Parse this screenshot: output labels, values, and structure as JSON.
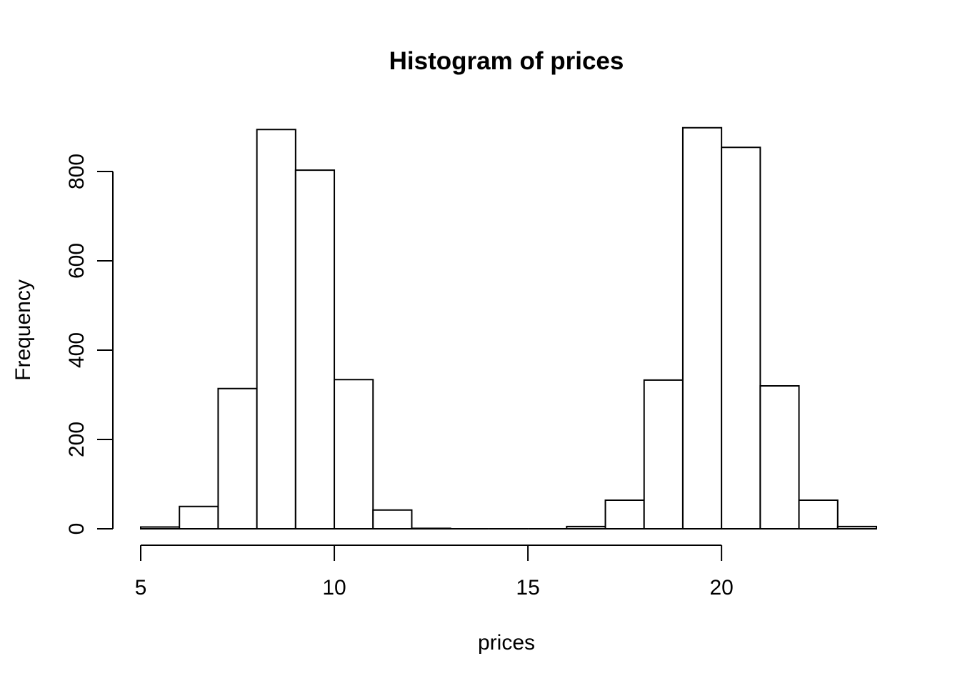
{
  "chart_data": {
    "type": "bar",
    "subtype": "histogram",
    "title": "Histogram of prices",
    "xlabel": "prices",
    "ylabel": "Frequency",
    "breaks": [
      5,
      6,
      7,
      8,
      9,
      10,
      11,
      12,
      13,
      14,
      15,
      16,
      17,
      18,
      19,
      20,
      21,
      22,
      23,
      24
    ],
    "counts": [
      4,
      50,
      314,
      894,
      803,
      334,
      42,
      1,
      0,
      0,
      0,
      5,
      64,
      333,
      898,
      854,
      320,
      64,
      5
    ],
    "x_ticks": [
      5,
      10,
      15,
      20
    ],
    "y_ticks": [
      0,
      200,
      400,
      600,
      800
    ],
    "xlim": [
      5,
      24
    ],
    "ylim": [
      0,
      900
    ],
    "grid": false,
    "legend_position": "none",
    "bar_fill": "#ffffff",
    "bar_stroke": "#000000",
    "axis_color": "#000000",
    "text_color": "#000000",
    "background": "#ffffff"
  }
}
